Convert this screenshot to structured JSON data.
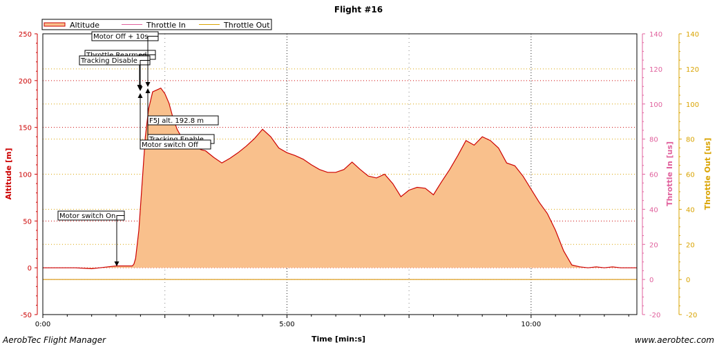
{
  "title": "Flight #16",
  "footer": {
    "left": "AerobTec Flight Manager",
    "right": "www.aerobtec.com"
  },
  "colors": {
    "altitude": "#cc0000",
    "fill": "#f9c08c",
    "throttle_in": "#e0609c",
    "throttle_out": "#d9a300",
    "grid_red": "#cc0000",
    "grid_black": "#000000"
  },
  "chart_data": {
    "type": "area",
    "title": "Flight #16",
    "xlabel": "Time [min:s]",
    "ylabel": "Altitude [m]",
    "y2label": "Throttle In [us]",
    "y3label": "Throttle Out [us]",
    "x_unit": "seconds",
    "xlim": [
      0,
      730
    ],
    "ylim": [
      -50,
      250
    ],
    "y2lim": [
      -20,
      140
    ],
    "y3lim": [
      -20,
      140
    ],
    "x_ticks": [
      0,
      300,
      600
    ],
    "x_tick_labels": [
      "0:00",
      "5:00",
      "10:00"
    ],
    "y_ticks": [
      -50,
      0,
      50,
      100,
      150,
      200,
      250
    ],
    "y2_ticks": [
      -20,
      0,
      20,
      40,
      60,
      80,
      100,
      120,
      140
    ],
    "legend_position": "top-left",
    "series": [
      {
        "name": "Altitude",
        "x": [
          0,
          20,
          40,
          60,
          70,
          80,
          90,
          100,
          110,
          112,
          114,
          118,
          122,
          126,
          130,
          135,
          140,
          145,
          150,
          155,
          160,
          165,
          170,
          175,
          180,
          185,
          190,
          195,
          200,
          210,
          220,
          230,
          240,
          250,
          260,
          270,
          280,
          290,
          300,
          310,
          320,
          330,
          340,
          350,
          360,
          370,
          380,
          390,
          400,
          410,
          420,
          430,
          440,
          450,
          460,
          470,
          480,
          490,
          500,
          510,
          520,
          530,
          540,
          550,
          560,
          570,
          580,
          590,
          600,
          610,
          620,
          630,
          640,
          650,
          660,
          670,
          680,
          690,
          700,
          710,
          720,
          730
        ],
        "values": [
          0,
          0,
          0,
          -1,
          0,
          1,
          2,
          2,
          2,
          4,
          10,
          40,
          90,
          140,
          170,
          188,
          190,
          192,
          186,
          176,
          160,
          148,
          140,
          135,
          132,
          130,
          128,
          126,
          125,
          118,
          112,
          117,
          123,
          130,
          138,
          148,
          140,
          128,
          123,
          120,
          116,
          110,
          105,
          102,
          102,
          105,
          113,
          105,
          98,
          96,
          100,
          90,
          76,
          83,
          86,
          85,
          78,
          92,
          105,
          120,
          136,
          131,
          140,
          136,
          128,
          112,
          109,
          98,
          84,
          70,
          58,
          40,
          18,
          3,
          1,
          0,
          1,
          0,
          1,
          0,
          0,
          0
        ]
      },
      {
        "name": "Throttle In",
        "x": [
          0,
          730
        ],
        "values": [
          0,
          0
        ]
      },
      {
        "name": "Throttle Out",
        "x": [
          0,
          730
        ],
        "values": [
          0,
          0
        ]
      }
    ],
    "annotations": [
      {
        "label": "Motor switch On",
        "x": 93,
        "y": 2
      },
      {
        "label": "Tracking Disable",
        "x": 120,
        "y": 190
      },
      {
        "label": "Throttle Rearmed",
        "x": 120,
        "y": 190
      },
      {
        "label": "Motor Off + 10s",
        "x": 129,
        "y": 195
      },
      {
        "label": "Motor switch Off",
        "x": 120,
        "y": 185
      },
      {
        "label": "Tracking Enable",
        "x": 128,
        "y": 192
      },
      {
        "label": "F5J alt. 192.8 m",
        "x": 129,
        "y": 192.8
      }
    ]
  }
}
